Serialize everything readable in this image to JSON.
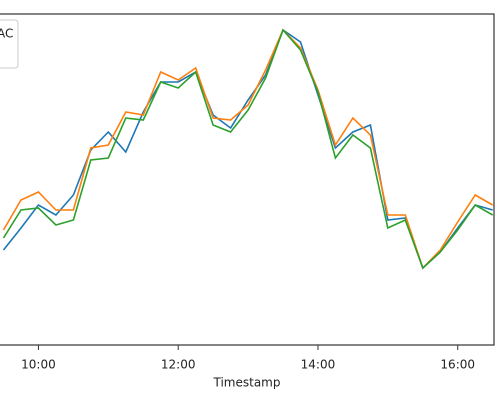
{
  "chart_data": {
    "type": "line",
    "xlabel": "Timestamp",
    "x": [
      "09:30",
      "09:45",
      "10:00",
      "10:15",
      "10:30",
      "10:45",
      "11:00",
      "11:15",
      "11:30",
      "11:45",
      "12:00",
      "12:15",
      "12:30",
      "12:45",
      "13:00",
      "13:15",
      "13:30",
      "13:45",
      "14:00",
      "14:15",
      "14:30",
      "14:45",
      "15:00",
      "15:15",
      "15:30",
      "15:45",
      "16:00",
      "16:15",
      "16:30"
    ],
    "xlim": [
      "09:27",
      "16:32"
    ],
    "xticks": [
      "10:00",
      "12:00",
      "14:00",
      "16:00"
    ],
    "ylim": [
      0,
      331
    ],
    "series": [
      {
        "name": "AC",
        "color": "#1f77b4",
        "values": [
          95,
          117,
          140,
          130,
          150,
          195,
          213,
          193,
          233,
          263,
          263,
          273,
          230,
          217,
          245,
          270,
          315,
          303,
          250,
          197,
          213,
          220,
          125,
          127,
          77,
          93,
          117,
          140,
          135
        ]
      },
      {
        "color": "#ff7f0e",
        "values": [
          115,
          145,
          153,
          135,
          135,
          197,
          200,
          233,
          230,
          273,
          265,
          277,
          227,
          225,
          240,
          275,
          315,
          297,
          255,
          200,
          227,
          210,
          130,
          130,
          77,
          95,
          123,
          150,
          140
        ]
      },
      {
        "color": "#2ca02c",
        "values": [
          107,
          135,
          137,
          120,
          125,
          185,
          187,
          227,
          225,
          263,
          257,
          273,
          220,
          213,
          235,
          267,
          315,
          295,
          253,
          187,
          210,
          197,
          117,
          125,
          77,
          93,
          115,
          140,
          130
        ]
      }
    ]
  }
}
